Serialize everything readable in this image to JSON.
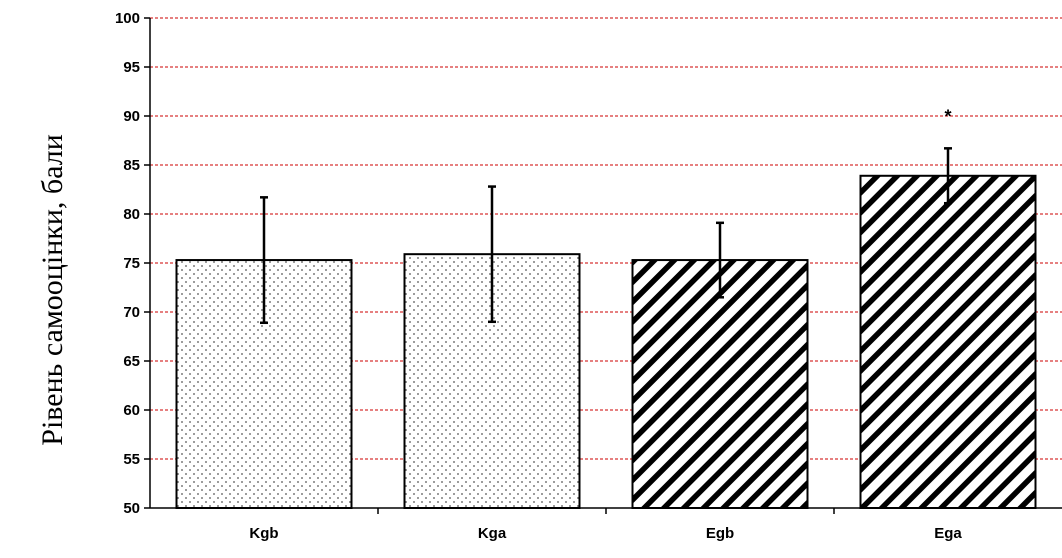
{
  "chart_data": {
    "type": "bar",
    "title": "",
    "xlabel": "",
    "ylabel": "Рівень самооцінки, бали",
    "ylim": [
      50,
      100
    ],
    "ytick_step": 5,
    "grid": true,
    "categories": [
      "Kgb",
      "Kga",
      "Egb",
      "Ega"
    ],
    "values": [
      75.3,
      75.9,
      75.3,
      83.9
    ],
    "errors": [
      6.4,
      6.9,
      3.8,
      2.8
    ],
    "patterns": [
      "dots",
      "dots",
      "diagonal-stripes",
      "diagonal-stripes"
    ],
    "annotations": [
      "",
      "",
      "",
      "*"
    ],
    "colors": {
      "grid": "#cc0000",
      "axis": "#000000",
      "bar_stroke": "#000000",
      "bar_fill": "#ffffff"
    }
  }
}
